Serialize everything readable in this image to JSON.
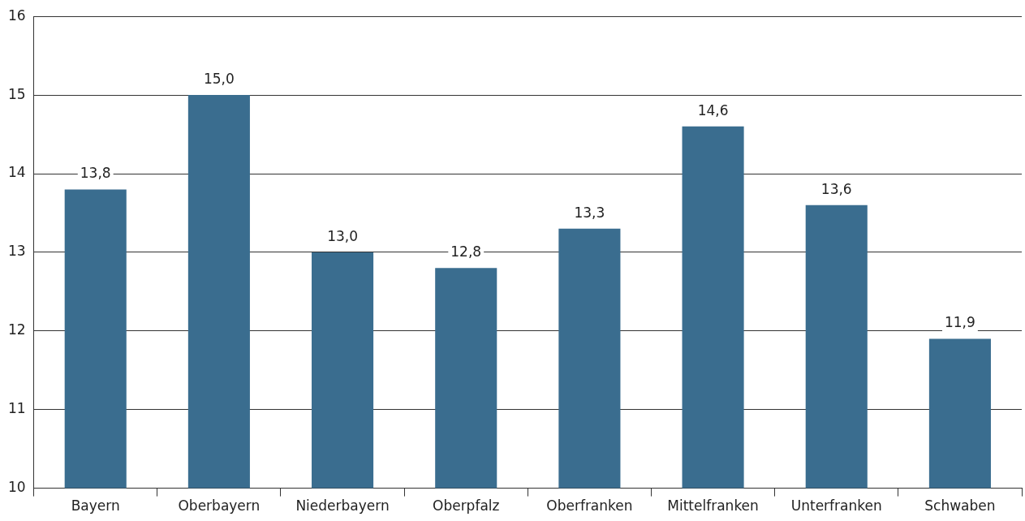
{
  "chart_data": {
    "type": "bar",
    "categories": [
      "Bayern",
      "Oberbayern",
      "Niederbayern",
      "Oberpfalz",
      "Oberfranken",
      "Mittelfranken",
      "Unterfranken",
      "Schwaben"
    ],
    "values": [
      13.8,
      15.0,
      13.0,
      12.8,
      13.3,
      14.6,
      13.6,
      11.9
    ],
    "value_labels": [
      "13,8",
      "15,0",
      "13,0",
      "12,8",
      "13,3",
      "14,6",
      "13,6",
      "11,9"
    ],
    "color": "#3a6d8f",
    "ylim": [
      10,
      16
    ],
    "yticks": [
      10,
      11,
      12,
      13,
      14,
      15,
      16
    ],
    "grid": "y",
    "legend": false
  }
}
